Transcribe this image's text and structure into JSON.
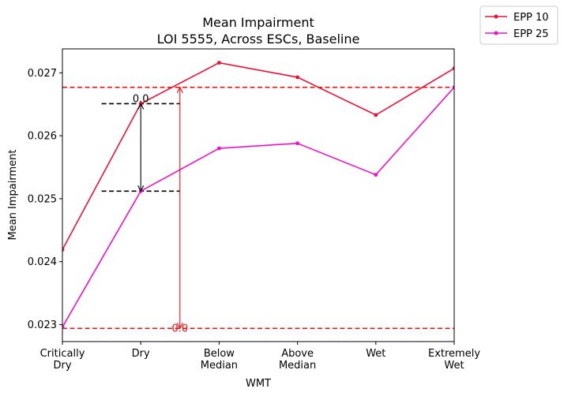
{
  "chart_data": {
    "type": "line",
    "title_line1": "Mean Impairment",
    "title_line2": "LOI 5555, Across ESCs, Baseline",
    "xlabel": "WMT",
    "ylabel": "Mean Impairment",
    "categories": [
      [
        "Critically",
        "Dry"
      ],
      [
        "Dry"
      ],
      [
        "Below",
        "Median"
      ],
      [
        "Above",
        "Median"
      ],
      [
        "Wet"
      ],
      [
        "Extremely",
        "Wet"
      ]
    ],
    "ylim": [
      0.02273,
      0.02738
    ],
    "yticks": [
      0.023,
      0.024,
      0.025,
      0.026,
      0.027
    ],
    "ytick_labels": [
      "0.023",
      "0.024",
      "0.025",
      "0.026",
      "0.027"
    ],
    "grid": false,
    "legend_position": "outside top-right",
    "series": [
      {
        "name": "EPP 10",
        "color": "#ee1133",
        "values": [
          0.02419,
          0.02651,
          0.02716,
          0.02693,
          0.02633,
          0.02707
        ]
      },
      {
        "name": "EPP 25",
        "color": "#ee11cc",
        "values": [
          0.02296,
          0.02512,
          0.0258,
          0.02588,
          0.02538,
          0.02677
        ]
      }
    ],
    "annotations": {
      "red_hlines": {
        "color": "#ee1111",
        "values": [
          0.02677,
          0.02294
        ]
      },
      "black_segments": {
        "color": "#000000",
        "values": [
          0.02651,
          0.02512
        ],
        "x_range": [
          0.5,
          1.5
        ]
      },
      "black_arrow": {
        "x": 1,
        "from": 0.02512,
        "to": 0.02651,
        "label": "0.0",
        "label_value": 0.02651
      },
      "red_arrow": {
        "x": 1.5,
        "from": 0.02294,
        "to": 0.02677,
        "label": "0.0",
        "label_value": 0.02294
      }
    }
  }
}
